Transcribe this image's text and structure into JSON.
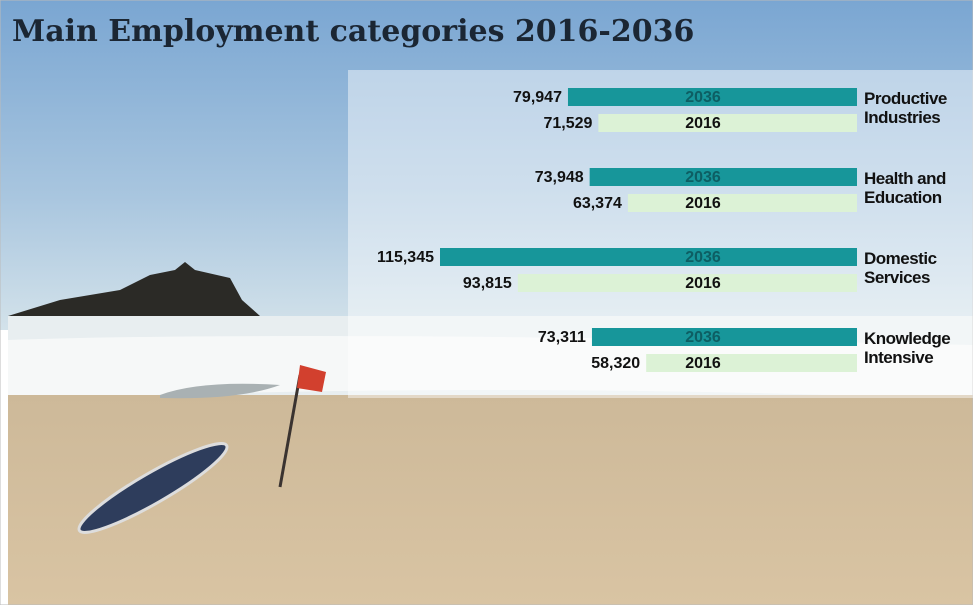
{
  "chart_data": {
    "type": "bar",
    "orientation": "horizontal",
    "title": "Main Employment categories 2016-2036",
    "categories": [
      "Productive Industries",
      "Health and Education",
      "Domestic Services",
      "Knowledge Intensive"
    ],
    "series": [
      {
        "name": "2036",
        "color": "#17969a",
        "values": [
          79947,
          73948,
          115345,
          73311
        ],
        "value_labels": [
          "79,947",
          "73,948",
          "115,345",
          "73,311"
        ]
      },
      {
        "name": "2016",
        "color": "#dcf2d6",
        "values": [
          71529,
          63374,
          93815,
          58320
        ],
        "value_labels": [
          "71,529",
          "63,374",
          "93,815",
          "58,320"
        ]
      }
    ]
  }
}
